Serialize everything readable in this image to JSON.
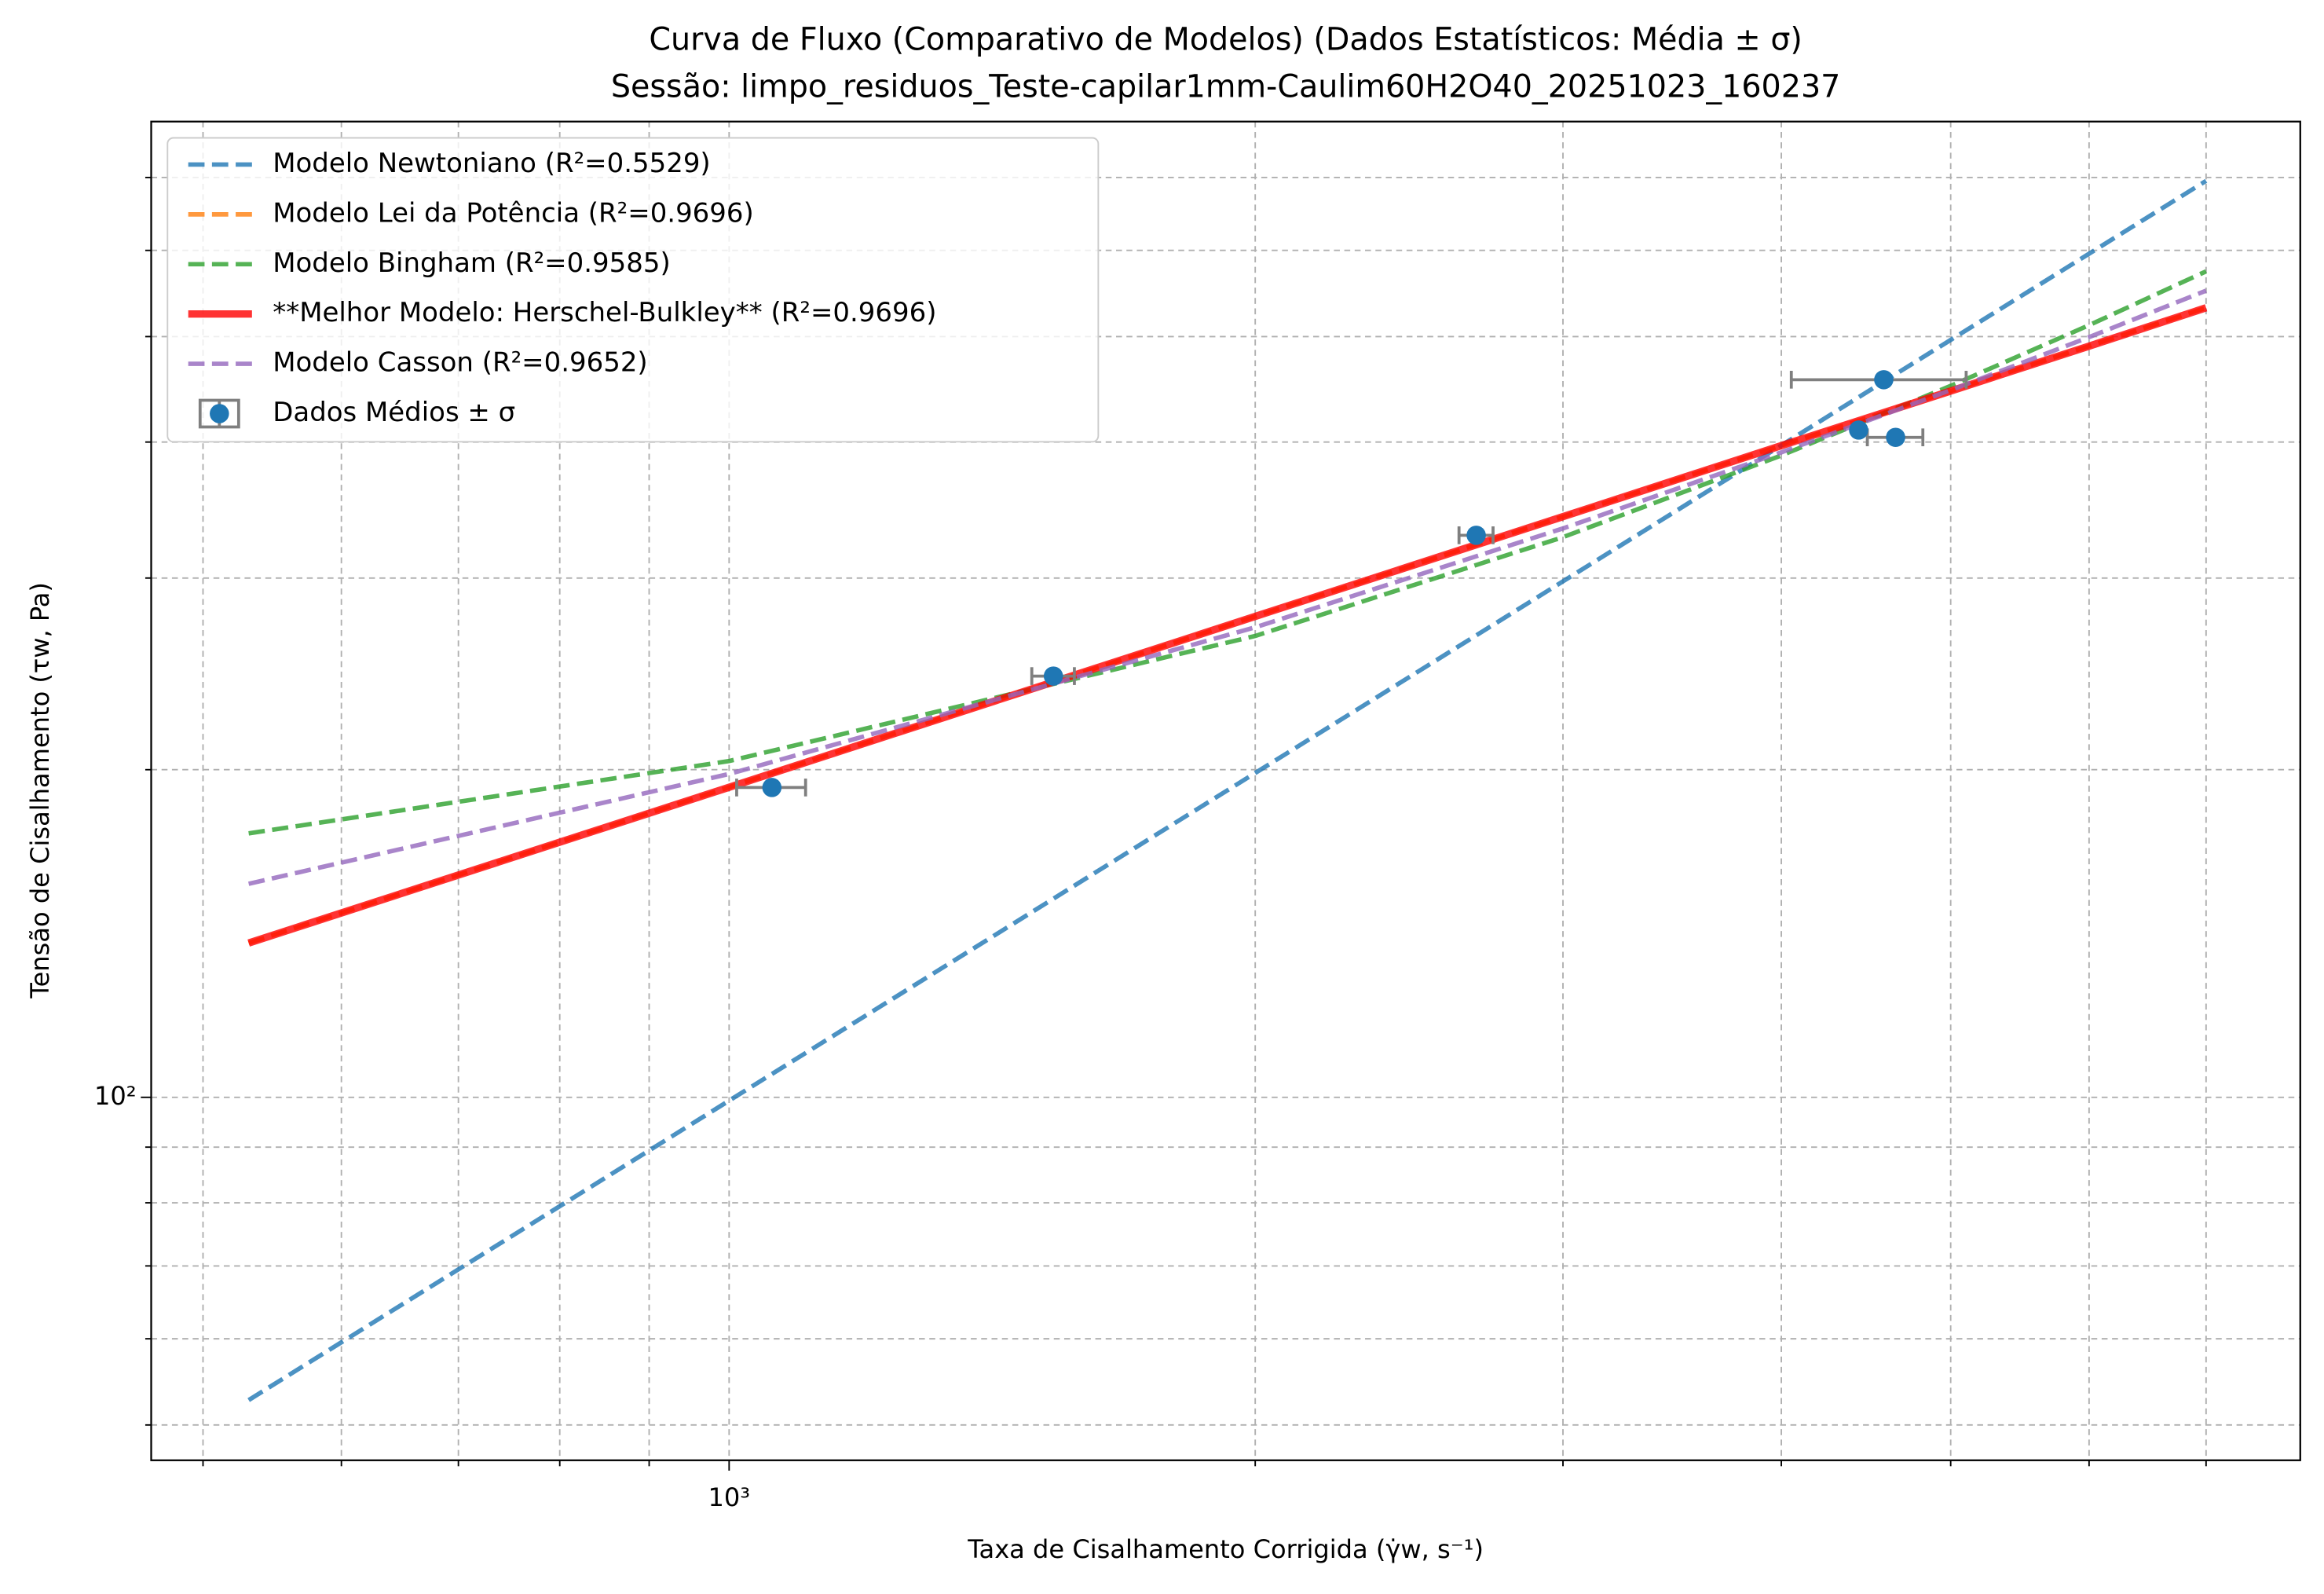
{
  "chart_data": {
    "type": "line",
    "title": "Curva de Fluxo (Comparativo de Modelos) (Dados Estatísticos: Média ± σ)",
    "subtitle": "Sessão: limpo_residuos_Teste-capilar1mm-Caulim60H2O40_20251023_160237",
    "xlabel": "Taxa de Cisalhamento Corrigida (γ̇w, s⁻¹)",
    "ylabel": "Tensão de Cisalhamento (τw, Pa)",
    "xscale": "log",
    "yscale": "log",
    "grid": true,
    "legend": "upper left",
    "xlim": [
      467,
      7925
    ],
    "ylim": [
      46.4,
      788
    ],
    "xticks": [
      {
        "value": 1000,
        "label": "10³"
      }
    ],
    "xminor": [
      500,
      600,
      700,
      800,
      900,
      2000,
      3000,
      4000,
      5000,
      6000,
      7000
    ],
    "yticks": [
      {
        "value": 100,
        "label": "10²"
      }
    ],
    "yminor": [
      50,
      60,
      70,
      80,
      90,
      200,
      300,
      400,
      500,
      600,
      700
    ],
    "series": [
      {
        "name": "Modelo Newtoniano (R²=0.5529)",
        "color": "#1f77b4",
        "linestyle": "dashed",
        "x": [
          531,
          1000,
          2000,
          3000,
          4000,
          5000,
          6000,
          7000
        ],
        "values": [
          52.7,
          99.3,
          198.6,
          297.9,
          397.2,
          496.5,
          595.8,
          695.1
        ]
      },
      {
        "name": "Modelo Lei da Potência (R²=0.9696)",
        "color": "#ff7f0e",
        "linestyle": "dashed",
        "x": [
          531,
          1000,
          2000,
          3000,
          4000,
          5000,
          6000,
          7000
        ],
        "values": [
          138.6,
          192.7,
          276.6,
          341.6,
          397,
          445.6,
          490,
          531.4
        ]
      },
      {
        "name": "Modelo Bingham (R²=0.9585)",
        "color": "#2ca02c",
        "linestyle": "dashed",
        "x": [
          531,
          1000,
          2000,
          3000,
          4000,
          5000,
          6000,
          7000
        ],
        "values": [
          174.8,
          203.7,
          265.4,
          327.1,
          388.8,
          450.5,
          512.2,
          574
        ]
      },
      {
        "name": "**Melhor Modelo: Herschel-Bulkley** (R²=0.9696)",
        "color": "#ff0000",
        "linestyle": "solid",
        "x": [
          531,
          1000,
          2000,
          3000,
          4000,
          5000,
          6000,
          7000
        ],
        "values": [
          138.6,
          192.7,
          276.6,
          341.6,
          397,
          445.6,
          490,
          531.4
        ]
      },
      {
        "name": "Modelo Casson (R²=0.9652)",
        "color": "#9467bd",
        "linestyle": "dashed",
        "x": [
          531,
          1000,
          2000,
          3000,
          4000,
          5000,
          6000,
          7000
        ],
        "values": [
          157.1,
          198.2,
          270.3,
          333.2,
          391.4,
          446.4,
          499.4,
          551
        ]
      },
      {
        "name": "Dados Médios ± σ",
        "color": "#1f77b4",
        "linestyle": "errorbar",
        "x": [
          1058,
          1533,
          2676,
          4578,
          4429,
          4650
        ],
        "values": [
          192.6,
          243.8,
          328.4,
          456.4,
          410.3,
          404
        ],
        "xerr": [
          48,
          43,
          60,
          525,
          null,
          170
        ]
      }
    ]
  }
}
